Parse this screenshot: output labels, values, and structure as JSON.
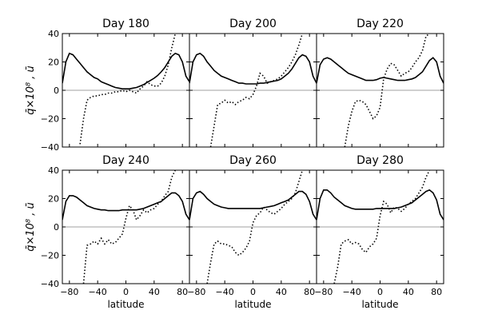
{
  "chart_data": {
    "type": "line",
    "ylabel": "q̄×10⁸ , ū",
    "xlabel": "latitude",
    "xlim": [
      -90,
      90
    ],
    "ylim": [
      -40,
      40
    ],
    "xticks": [
      -80,
      -40,
      0,
      40,
      80
    ],
    "yticks": [
      -40,
      -20,
      0,
      20,
      40
    ],
    "panels": [
      {
        "title": "Day 180",
        "series": [
          {
            "name": "u",
            "style": "solid",
            "x": [
              -90,
              -85,
              -80,
              -75,
              -70,
              -65,
              -60,
              -55,
              -50,
              -45,
              -40,
              -35,
              -30,
              -25,
              -20,
              -15,
              -10,
              -5,
              0,
              5,
              10,
              15,
              20,
              25,
              30,
              35,
              40,
              45,
              50,
              55,
              60,
              65,
              70,
              75,
              80,
              85,
              90
            ],
            "y": [
              5,
              20,
              26,
              25,
              22,
              19,
              16,
              13,
              11,
              9,
              8,
              6,
              5,
              4,
              3,
              2,
              1.5,
              1,
              1,
              1,
              1.5,
              2,
              3,
              4,
              5.5,
              7,
              8.5,
              10.5,
              13,
              16,
              20,
              24,
              26,
              25,
              20,
              10,
              6
            ]
          },
          {
            "name": "q",
            "style": "dotted",
            "x": [
              -65,
              -60,
              -55,
              -50,
              -45,
              -40,
              -35,
              -30,
              -25,
              -20,
              -15,
              -10,
              -5,
              0,
              5,
              10,
              15,
              20,
              25,
              30,
              35,
              40,
              45,
              50,
              55,
              60,
              65,
              70
            ],
            "y": [
              -38,
              -20,
              -7,
              -5,
              -4,
              -4,
              -3,
              -3,
              -2,
              -2,
              -1,
              -1,
              0,
              -1,
              0,
              -1,
              -2,
              1,
              3,
              6,
              4,
              3,
              3,
              5,
              10,
              18,
              30,
              40
            ]
          }
        ]
      },
      {
        "title": "Day 200",
        "series": [
          {
            "name": "u",
            "style": "solid",
            "x": [
              -90,
              -85,
              -80,
              -75,
              -70,
              -65,
              -60,
              -55,
              -50,
              -45,
              -40,
              -35,
              -30,
              -25,
              -20,
              -15,
              -10,
              -5,
              0,
              5,
              10,
              15,
              20,
              25,
              30,
              35,
              40,
              45,
              50,
              55,
              60,
              65,
              70,
              75,
              80,
              85,
              90
            ],
            "y": [
              5,
              20,
              25,
              26,
              24,
              20,
              17,
              14,
              12,
              10,
              9,
              8,
              7,
              6,
              5,
              5,
              4.5,
              4.5,
              4.5,
              4.5,
              5,
              5,
              5.5,
              6,
              6.5,
              7,
              8,
              10,
              12,
              15,
              19,
              23,
              25,
              24,
              20,
              10,
              5
            ]
          },
          {
            "name": "q",
            "style": "dotted",
            "x": [
              -60,
              -55,
              -50,
              -45,
              -40,
              -35,
              -30,
              -25,
              -20,
              -15,
              -10,
              -5,
              0,
              5,
              10,
              15,
              20,
              25,
              30,
              35,
              40,
              45,
              50,
              55,
              60,
              65,
              70
            ],
            "y": [
              -40,
              -25,
              -10,
              -9,
              -7,
              -9,
              -8,
              -10,
              -8,
              -7,
              -5,
              -6,
              -3,
              3,
              12,
              10,
              5,
              6,
              7,
              8,
              10,
              13,
              16,
              20,
              25,
              32,
              40
            ]
          }
        ]
      },
      {
        "title": "Day 220",
        "series": [
          {
            "name": "u",
            "style": "solid",
            "x": [
              -90,
              -85,
              -80,
              -75,
              -70,
              -65,
              -60,
              -55,
              -50,
              -45,
              -40,
              -35,
              -30,
              -25,
              -20,
              -15,
              -10,
              -5,
              0,
              5,
              10,
              15,
              20,
              25,
              30,
              35,
              40,
              45,
              50,
              55,
              60,
              65,
              70,
              75,
              80,
              85,
              90
            ],
            "y": [
              5,
              18,
              22,
              23,
              22,
              20,
              18,
              16,
              14,
              12,
              11,
              10,
              9,
              8,
              7,
              7,
              7,
              7.5,
              8.5,
              9,
              8.5,
              8,
              7.5,
              7,
              7,
              7,
              7.5,
              8,
              9,
              11,
              13,
              17,
              21,
              23,
              20,
              10,
              5
            ]
          },
          {
            "name": "q",
            "style": "dotted",
            "x": [
              -50,
              -45,
              -40,
              -35,
              -30,
              -25,
              -20,
              -15,
              -10,
              -5,
              0,
              5,
              10,
              15,
              20,
              25,
              30,
              35,
              40,
              45,
              50,
              55,
              60,
              65,
              70
            ],
            "y": [
              -40,
              -25,
              -15,
              -8,
              -7,
              -8,
              -10,
              -15,
              -20,
              -18,
              -12,
              8,
              15,
              19,
              18,
              14,
              10,
              12,
              13,
              16,
              20,
              23,
              28,
              38,
              40
            ]
          }
        ]
      },
      {
        "title": "Day 240",
        "series": [
          {
            "name": "u",
            "style": "solid",
            "x": [
              -90,
              -85,
              -80,
              -75,
              -70,
              -65,
              -60,
              -55,
              -50,
              -45,
              -40,
              -35,
              -30,
              -25,
              -20,
              -15,
              -10,
              -5,
              0,
              5,
              10,
              15,
              20,
              25,
              30,
              35,
              40,
              45,
              50,
              55,
              60,
              65,
              70,
              75,
              80,
              85,
              90
            ],
            "y": [
              5,
              18,
              22,
              22,
              21,
              19,
              17,
              15,
              14,
              13,
              12.5,
              12,
              12,
              11.5,
              11.5,
              11.5,
              11.5,
              12,
              12,
              12,
              12,
              12,
              12.5,
              13,
              14,
              15,
              16,
              17,
              18,
              20,
              22,
              24,
              24,
              22,
              18,
              9,
              5
            ]
          },
          {
            "name": "q",
            "style": "dotted",
            "x": [
              -60,
              -55,
              -50,
              -45,
              -40,
              -35,
              -30,
              -25,
              -20,
              -15,
              -10,
              -5,
              0,
              5,
              10,
              15,
              20,
              25,
              30,
              35,
              40,
              45,
              50,
              55,
              60,
              65,
              70
            ],
            "y": [
              -40,
              -13,
              -12,
              -10,
              -12,
              -8,
              -12,
              -9,
              -12,
              -11,
              -8,
              -5,
              6,
              15,
              12,
              5,
              8,
              12,
              10,
              12,
              13,
              16,
              18,
              22,
              25,
              35,
              40
            ]
          }
        ]
      },
      {
        "title": "Day 260",
        "series": [
          {
            "name": "u",
            "style": "solid",
            "x": [
              -90,
              -85,
              -80,
              -75,
              -70,
              -65,
              -60,
              -55,
              -50,
              -45,
              -40,
              -35,
              -30,
              -25,
              -20,
              -15,
              -10,
              -5,
              0,
              5,
              10,
              15,
              20,
              25,
              30,
              35,
              40,
              45,
              50,
              55,
              60,
              65,
              70,
              75,
              80,
              85,
              90
            ],
            "y": [
              5,
              20,
              24,
              25,
              23,
              20,
              18,
              16,
              15,
              14,
              13.5,
              13,
              13,
              13,
              13,
              13,
              13,
              13,
              13,
              13,
              13,
              13.5,
              14,
              14.5,
              15,
              16,
              17,
              18,
              19,
              21,
              23,
              25,
              25,
              23,
              18,
              9,
              5
            ]
          },
          {
            "name": "q",
            "style": "dotted",
            "x": [
              -65,
              -60,
              -55,
              -50,
              -45,
              -40,
              -35,
              -30,
              -25,
              -20,
              -15,
              -10,
              -5,
              0,
              5,
              10,
              15,
              20,
              25,
              30,
              35,
              40,
              45,
              50,
              55,
              60,
              65,
              70
            ],
            "y": [
              -40,
              -25,
              -12,
              -10,
              -12,
              -12,
              -13,
              -14,
              -18,
              -20,
              -18,
              -15,
              -10,
              3,
              8,
              10,
              14,
              12,
              10,
              9,
              11,
              13,
              16,
              18,
              20,
              24,
              32,
              40
            ]
          }
        ]
      },
      {
        "title": "Day 280",
        "series": [
          {
            "name": "u",
            "style": "solid",
            "x": [
              -90,
              -85,
              -80,
              -75,
              -70,
              -65,
              -60,
              -55,
              -50,
              -45,
              -40,
              -35,
              -30,
              -25,
              -20,
              -15,
              -10,
              -5,
              0,
              5,
              10,
              15,
              20,
              25,
              30,
              35,
              40,
              45,
              50,
              55,
              60,
              65,
              70,
              75,
              80,
              85,
              90
            ],
            "y": [
              5,
              20,
              26,
              26,
              24,
              21,
              19,
              17,
              15,
              14,
              13,
              12.5,
              12.5,
              12.5,
              12.5,
              12.5,
              12.5,
              13,
              13,
              13,
              13,
              13,
              13,
              13.5,
              14,
              15,
              16,
              17,
              19,
              21,
              23,
              25,
              26,
              24,
              19,
              9,
              5
            ]
          },
          {
            "name": "q",
            "style": "dotted",
            "x": [
              -65,
              -60,
              -55,
              -50,
              -45,
              -40,
              -35,
              -30,
              -25,
              -20,
              -15,
              -10,
              -5,
              0,
              5,
              10,
              15,
              20,
              25,
              30,
              35,
              40,
              45,
              50,
              55,
              60,
              65,
              70
            ],
            "y": [
              -40,
              -28,
              -12,
              -10,
              -9,
              -12,
              -11,
              -12,
              -16,
              -18,
              -14,
              -12,
              -8,
              8,
              18,
              16,
              10,
              14,
              13,
              11,
              13,
              16,
              18,
              20,
              24,
              28,
              35,
              40
            ]
          }
        ]
      }
    ]
  }
}
